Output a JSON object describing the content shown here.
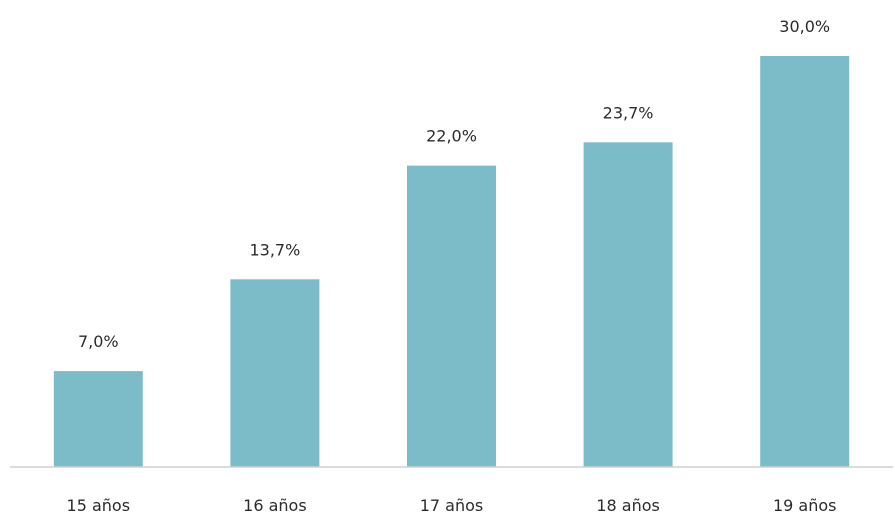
{
  "chart_data": {
    "type": "bar",
    "categories": [
      "15 años",
      "16 años",
      "17 años",
      "18 años",
      "19 años"
    ],
    "values": [
      7.0,
      13.7,
      22.0,
      23.7,
      30.0
    ],
    "value_labels": [
      "7,0%",
      "13,7%",
      "22,0%",
      "23,7%",
      "30,0%"
    ],
    "title": "",
    "xlabel": "",
    "ylabel": "",
    "ylim": [
      0,
      30
    ],
    "grid": false,
    "legend": "none",
    "colors": {
      "bar": "#7bbcc8",
      "axis": "#d0d0d0",
      "text": "#2b2b2b"
    }
  }
}
